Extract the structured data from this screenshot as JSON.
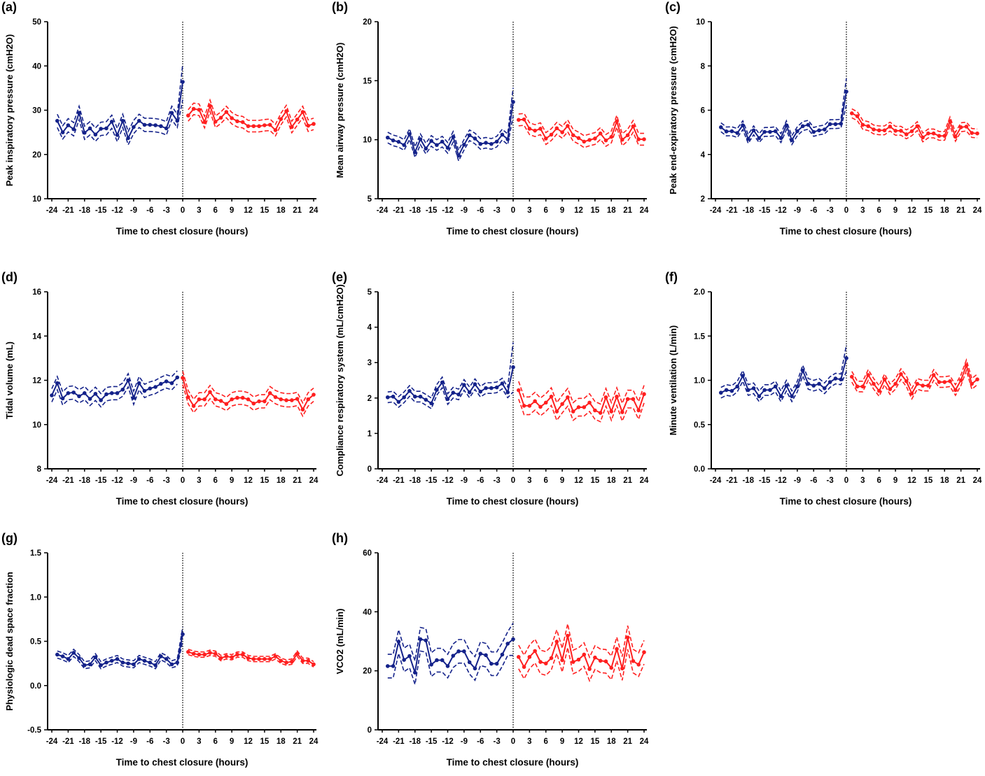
{
  "colors": {
    "pre": "#14228a",
    "post": "#ff1f1f",
    "axis": "#000000"
  },
  "chart_data": [
    {
      "type": "line",
      "letter": "(a)",
      "ylabel": "Peak inspiratory pressure (cmH2O)",
      "xlabel": "Time to chest closure (hours)",
      "xlim": [
        -24,
        24
      ],
      "xticks": [
        "-24",
        "-21",
        "-18",
        "-15",
        "-12",
        "-9",
        "-6",
        "-3",
        "0",
        "3",
        "6",
        "9",
        "12",
        "15",
        "18",
        "21",
        "24"
      ],
      "ylim": [
        10,
        50
      ],
      "yticks": [
        "10",
        "20",
        "30",
        "40",
        "50"
      ],
      "reference_line_x": 0,
      "series": [
        {
          "x_start": -23,
          "ci": 1.5,
          "ci_end": 4.0,
          "color_key": "pre",
          "values": [
            27.6,
            25.0,
            26.6,
            25.7,
            29.4,
            24.9,
            25.9,
            24.5,
            25.8,
            25.9,
            27.4,
            24.4,
            27.6,
            23.7,
            26.2,
            27.6,
            26.7,
            26.7,
            26.6,
            26.4,
            25.9,
            29.4,
            27.6,
            36.4
          ]
        },
        {
          "x_start": 1,
          "ci": 1.3,
          "ci_end": 1.3,
          "color_key": "post",
          "values": [
            28.8,
            30.3,
            30.1,
            27.3,
            31.0,
            27.4,
            28.3,
            29.6,
            28.2,
            27.5,
            27.3,
            26.4,
            26.4,
            26.4,
            26.6,
            26.7,
            25.5,
            28.0,
            29.8,
            26.2,
            27.9,
            29.6,
            26.5,
            26.9
          ]
        }
      ]
    },
    {
      "type": "line",
      "letter": "(b)",
      "ylabel": "Mean airway pressure (cmH2O)",
      "xlabel": "Time to chest closure (hours)",
      "xlim": [
        -24,
        24
      ],
      "xticks": [
        "-24",
        "-21",
        "-18",
        "-15",
        "-12",
        "-9",
        "-6",
        "-3",
        "0",
        "3",
        "6",
        "9",
        "12",
        "15",
        "18",
        "21",
        "24"
      ],
      "ylim": [
        5,
        20
      ],
      "yticks": [
        "5",
        "10",
        "15",
        "20"
      ],
      "reference_line_x": 0,
      "series": [
        {
          "x_start": -23,
          "ci": 0.45,
          "ci_end": 1.2,
          "color_key": "pre",
          "values": [
            10.18,
            9.94,
            9.82,
            9.55,
            10.47,
            8.95,
            10.04,
            9.25,
            9.9,
            9.55,
            9.84,
            9.31,
            10.24,
            8.66,
            9.58,
            10.38,
            10.1,
            9.64,
            9.74,
            9.64,
            9.84,
            10.43,
            10.04,
            13.2
          ]
        },
        {
          "x_start": 1,
          "ci": 0.5,
          "ci_end": 0.5,
          "color_key": "post",
          "values": [
            11.68,
            11.72,
            10.93,
            10.77,
            10.93,
            10.1,
            10.43,
            10.97,
            10.63,
            11.17,
            10.38,
            10.14,
            9.84,
            9.98,
            10.1,
            10.53,
            9.94,
            10.24,
            11.56,
            10.0,
            10.38,
            11.13,
            10.04,
            10.04
          ]
        }
      ]
    },
    {
      "type": "line",
      "letter": "(c)",
      "ylabel": "Peak end-expiratory pressure (cmH2O)",
      "xlabel": "Time to chest closure (hours)",
      "xlim": [
        -24,
        24
      ],
      "xticks": [
        "-24",
        "-21",
        "-18",
        "-15",
        "-12",
        "-9",
        "-6",
        "-3",
        "0",
        "3",
        "6",
        "9",
        "12",
        "15",
        "18",
        "21",
        "24"
      ],
      "ylim": [
        2,
        10
      ],
      "yticks": [
        "2",
        "4",
        "6",
        "8",
        "10"
      ],
      "reference_line_x": 0,
      "series": [
        {
          "x_start": -23,
          "ci": 0.2,
          "ci_end": 0.6,
          "color_key": "pre",
          "values": [
            5.23,
            5.04,
            5.05,
            4.97,
            5.32,
            4.7,
            5.09,
            4.74,
            5.02,
            5.02,
            5.05,
            4.74,
            5.32,
            4.65,
            5.05,
            5.28,
            5.34,
            5.02,
            5.09,
            5.13,
            5.37,
            5.37,
            5.39,
            6.84
          ]
        },
        {
          "x_start": 1,
          "ci": 0.2,
          "ci_end": 0.2,
          "color_key": "post",
          "values": [
            5.86,
            5.73,
            5.34,
            5.28,
            5.13,
            5.09,
            5.09,
            5.26,
            5.07,
            5.07,
            4.91,
            5.05,
            5.28,
            4.77,
            4.95,
            4.95,
            4.84,
            4.84,
            5.49,
            4.8,
            5.23,
            5.26,
            4.97,
            4.95
          ]
        }
      ]
    },
    {
      "type": "line",
      "letter": "(d)",
      "ylabel": "Tidal volume (mL)",
      "xlabel": "Time to chest closure (hours)",
      "xlim": [
        -24,
        24
      ],
      "xticks": [
        "-24",
        "-21",
        "-18",
        "-15",
        "-12",
        "-9",
        "-6",
        "-3",
        "0",
        "3",
        "6",
        "9",
        "12",
        "15",
        "18",
        "21",
        "24"
      ],
      "ylim": [
        8,
        16
      ],
      "yticks": [
        "8",
        "10",
        "12",
        "14",
        "16"
      ],
      "reference_line_x": 0,
      "series": [
        {
          "x_start": -24,
          "ci": 0.3,
          "ci_end": 0.3,
          "color_key": "pre",
          "values": [
            11.32,
            11.87,
            11.18,
            11.42,
            11.45,
            11.28,
            11.42,
            11.16,
            11.39,
            11.1,
            11.37,
            11.42,
            11.42,
            11.58,
            12.0,
            11.21,
            11.87,
            11.52,
            11.63,
            11.7,
            11.84,
            11.95,
            11.87,
            12.13
          ]
        },
        {
          "x_start": 0,
          "ci": 0.3,
          "ci_end": 0.3,
          "color_key": "post",
          "values": [
            12.11,
            11.24,
            10.84,
            11.14,
            11.14,
            11.47,
            11.14,
            11.07,
            10.93,
            11.14,
            11.21,
            11.21,
            11.14,
            10.95,
            11.05,
            11.05,
            11.42,
            11.24,
            11.14,
            11.1,
            11.1,
            11.16,
            10.68,
            11.14,
            11.35
          ]
        }
      ]
    },
    {
      "type": "line",
      "letter": "(e)",
      "ylabel": "Compliance respiratory system (mL/cmH2O)",
      "xlabel": "Time to chest closure (hours)",
      "xlim": [
        -24,
        24
      ],
      "xticks": [
        "-24",
        "-21",
        "-18",
        "-15",
        "-12",
        "-9",
        "-6",
        "-3",
        "0",
        "3",
        "6",
        "9",
        "12",
        "15",
        "18",
        "21",
        "24"
      ],
      "ylim": [
        0,
        5
      ],
      "yticks": [
        "0",
        "1",
        "2",
        "3",
        "4",
        "5"
      ],
      "reference_line_x": 0,
      "series": [
        {
          "x_start": -23,
          "ci": 0.15,
          "ci_end": 0.7,
          "color_key": "pre",
          "values": [
            2.02,
            2.04,
            1.89,
            2.02,
            2.2,
            2.04,
            2.04,
            1.95,
            1.85,
            2.23,
            2.44,
            1.97,
            2.15,
            2.1,
            2.37,
            2.16,
            2.39,
            2.18,
            2.28,
            2.28,
            2.3,
            2.41,
            2.16,
            2.87
          ]
        },
        {
          "x_start": 1,
          "ci": 0.25,
          "ci_end": 0.25,
          "color_key": "post",
          "values": [
            2.22,
            1.78,
            1.78,
            1.91,
            1.75,
            1.87,
            2.04,
            1.62,
            1.83,
            2.02,
            1.62,
            1.74,
            1.74,
            1.87,
            1.65,
            1.58,
            2.02,
            1.62,
            2.04,
            1.6,
            1.97,
            1.97,
            1.65,
            2.11
          ]
        }
      ]
    },
    {
      "type": "line",
      "letter": "(f)",
      "ylabel": "Minute ventilation (L/min)",
      "xlabel": "Time to chest closure (hours)",
      "xlim": [
        -24,
        24
      ],
      "xticks": [
        "-24",
        "-21",
        "-18",
        "-15",
        "-12",
        "-9",
        "-6",
        "-3",
        "0",
        "3",
        "6",
        "9",
        "12",
        "15",
        "18",
        "21",
        "24"
      ],
      "ylim": [
        0,
        2
      ],
      "yticks": [
        "0.0",
        "0.5",
        "1.0",
        "1.5",
        "2.0"
      ],
      "reference_line_x": 0,
      "series": [
        {
          "x_start": -23,
          "ci": 0.06,
          "ci_end": 0.15,
          "color_key": "pre",
          "values": [
            0.86,
            0.89,
            0.88,
            0.93,
            1.05,
            0.89,
            0.91,
            0.82,
            0.89,
            0.89,
            0.93,
            0.82,
            0.94,
            0.82,
            0.93,
            1.11,
            0.96,
            0.94,
            0.96,
            0.91,
            0.98,
            1.02,
            1.01,
            1.25
          ]
        },
        {
          "x_start": 1,
          "ci": 0.06,
          "ci_end": 0.06,
          "color_key": "post",
          "values": [
            1.04,
            0.93,
            0.93,
            1.06,
            0.96,
            0.88,
            1.01,
            0.9,
            0.96,
            1.07,
            0.99,
            0.85,
            0.96,
            0.94,
            0.94,
            1.06,
            0.98,
            0.98,
            0.99,
            0.89,
            1.0,
            1.17,
            0.96,
            1.01
          ]
        }
      ]
    },
    {
      "type": "line",
      "letter": "(g)",
      "ylabel": "Physiologic dead space fraction",
      "xlabel": "Time to chest closure (hours)",
      "xlim": [
        -24,
        24
      ],
      "xticks": [
        "-24",
        "-21",
        "-18",
        "-15",
        "-12",
        "-9",
        "-6",
        "-3",
        "0",
        "3",
        "6",
        "9",
        "12",
        "15",
        "18",
        "21",
        "24"
      ],
      "ylim": [
        -0.5,
        1.5
      ],
      "yticks": [
        "-0.5",
        "0.0",
        "0.5",
        "1.0",
        "1.5"
      ],
      "reference_line_x": 0,
      "series": [
        {
          "x_start": -23,
          "ci": 0.04,
          "ci_end": 0.08,
          "color_key": "pre",
          "values": [
            0.35,
            0.33,
            0.3,
            0.37,
            0.31,
            0.23,
            0.24,
            0.32,
            0.23,
            0.26,
            0.28,
            0.3,
            0.26,
            0.25,
            0.24,
            0.3,
            0.28,
            0.26,
            0.23,
            0.33,
            0.3,
            0.24,
            0.26,
            0.58
          ]
        },
        {
          "x_start": 1,
          "ci": 0.03,
          "ci_end": 0.03,
          "color_key": "post",
          "values": [
            0.38,
            0.36,
            0.35,
            0.35,
            0.37,
            0.36,
            0.31,
            0.33,
            0.32,
            0.35,
            0.35,
            0.31,
            0.3,
            0.3,
            0.3,
            0.3,
            0.33,
            0.28,
            0.26,
            0.27,
            0.36,
            0.28,
            0.28,
            0.24
          ]
        }
      ]
    },
    {
      "type": "line",
      "letter": "(h)",
      "ylabel": "VCO2 (mL/min)",
      "xlabel": "Time to chest closure (hours)",
      "xlim": [
        -24,
        24
      ],
      "xticks": [
        "-24",
        "-21",
        "-18",
        "-15",
        "-12",
        "-9",
        "-6",
        "-3",
        "0",
        "3",
        "6",
        "9",
        "12",
        "15",
        "18",
        "21",
        "24"
      ],
      "ylim": [
        0,
        60
      ],
      "yticks": [
        "0",
        "20",
        "40",
        "60"
      ],
      "reference_line_x": 0,
      "series": [
        {
          "x_start": -23,
          "ci": 4.0,
          "ci_end": 5.5,
          "color_key": "pre",
          "values": [
            21.6,
            21.6,
            29.9,
            23.7,
            25.0,
            19.4,
            30.7,
            30.3,
            22.1,
            23.6,
            23.6,
            21.6,
            25.1,
            26.6,
            26.6,
            22.9,
            20.8,
            25.8,
            25.3,
            22.4,
            22.4,
            25.5,
            29.2,
            30.7
          ]
        },
        {
          "x_start": 1,
          "ci": 4.0,
          "ci_end": 4.0,
          "color_key": "post",
          "values": [
            24.7,
            21.3,
            24.7,
            26.7,
            23.0,
            22.5,
            24.3,
            29.9,
            23.6,
            31.9,
            23.0,
            23.8,
            25.5,
            20.6,
            24.5,
            23.4,
            23.2,
            21.0,
            27.4,
            20.8,
            31.3,
            23.3,
            22.1,
            26.3
          ]
        }
      ]
    }
  ]
}
